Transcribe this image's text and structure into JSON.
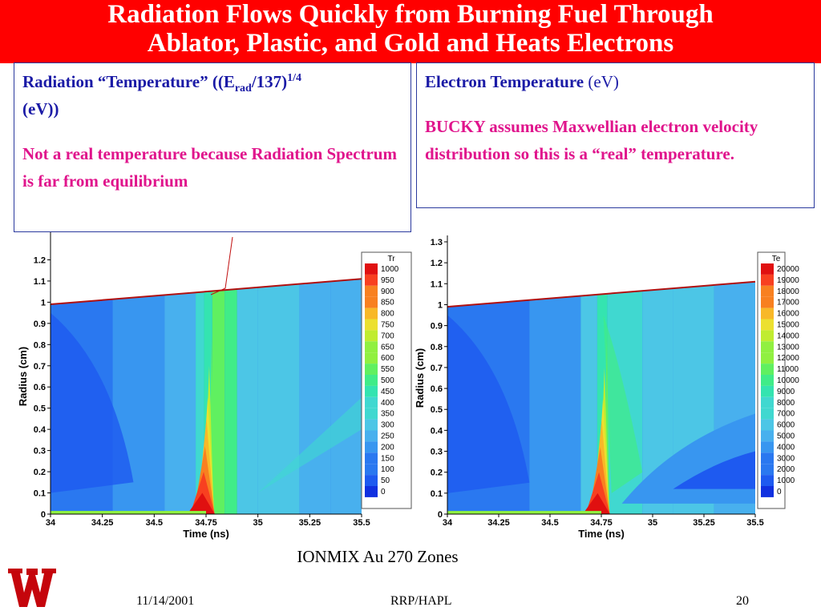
{
  "title_line1": "Radiation Flows Quickly from Burning Fuel Through",
  "title_line2": "Ablator, Plastic, and Gold and Heats Electrons",
  "left_box": {
    "heading_a": "Radiation “Temperature” ((E",
    "heading_sub": "rad",
    "heading_b": "/137)",
    "heading_sup": "1/4",
    "heading_c": "(eV))",
    "note": "Not a real temperature because Radiation Spectrum is far from equilibrium"
  },
  "right_box": {
    "heading_a": "Electron  Temperature",
    "heading_b": "(eV)",
    "note": "BUCKY assumes Maxwellian electron velocity distribution so this is a “real” temperature."
  },
  "caption": "IONMIX Au 270 Zones",
  "footer": {
    "date": "11/14/2001",
    "center": "RRP/HAPL",
    "page": "20"
  },
  "colors": {
    "title_bar": "#ff0000",
    "heading": "#1a1aa6",
    "note": "#e0148c",
    "boundary": "#b01010"
  },
  "chart_data": [
    {
      "type": "heatmap",
      "xlabel": "Time (ns)",
      "ylabel": "Radius (cm)",
      "xlim": [
        34,
        35.5
      ],
      "ylim": [
        0,
        1.3
      ],
      "x_ticks": [
        "34",
        "34.25",
        "34.5",
        "34.75",
        "35",
        "35.25",
        "35.5"
      ],
      "y_ticks": [
        "0",
        "0.1",
        "0.2",
        "0.3",
        "0.4",
        "0.5",
        "0.6",
        "0.7",
        "0.8",
        "0.9",
        "1",
        "1.1",
        "1.2"
      ],
      "legend_title": "Tr",
      "legend_levels": [
        "1000",
        "950",
        "900",
        "850",
        "800",
        "750",
        "700",
        "650",
        "600",
        "550",
        "500",
        "450",
        "400",
        "350",
        "300",
        "250",
        "200",
        "150",
        "100",
        "50",
        "0"
      ]
    },
    {
      "type": "heatmap",
      "xlabel": "Time (ns)",
      "ylabel": "Radius (cm)",
      "xlim": [
        34,
        35.5
      ],
      "ylim": [
        0,
        1.3
      ],
      "x_ticks": [
        "34",
        "34.25",
        "34.5",
        "34.75",
        "35",
        "35.25",
        "35.5"
      ],
      "y_ticks": [
        "0",
        "0.1",
        "0.2",
        "0.3",
        "0.4",
        "0.5",
        "0.6",
        "0.7",
        "0.8",
        "0.9",
        "1",
        "1.1",
        "1.2",
        "1.3"
      ],
      "legend_title": "Te",
      "legend_levels": [
        "20000",
        "19000",
        "18000",
        "17000",
        "16000",
        "15000",
        "14000",
        "13000",
        "12000",
        "11000",
        "10000",
        "9000",
        "8000",
        "7000",
        "6000",
        "5000",
        "4000",
        "3000",
        "2000",
        "1000",
        "0"
      ]
    }
  ]
}
